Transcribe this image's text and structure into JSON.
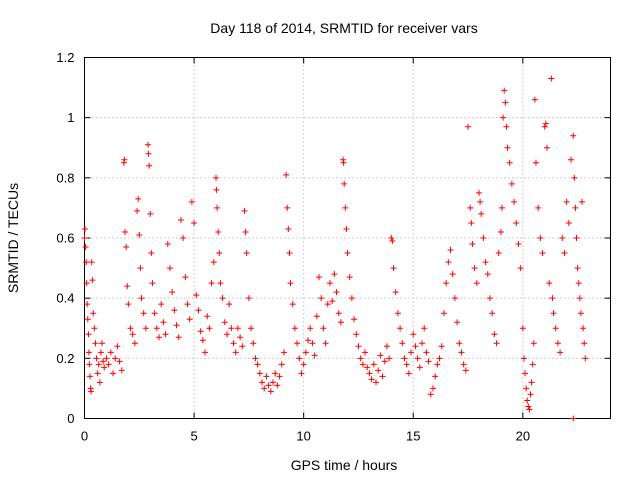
{
  "chart_data": {
    "type": "scatter",
    "title": "Day 118 of 2014, SRMTID for receiver vars",
    "xlabel": "GPS time / hours",
    "ylabel": "SRMTID / TECUs",
    "xlim": [
      0,
      24
    ],
    "ylim": [
      0,
      1.2
    ],
    "xticks": [
      0,
      5,
      10,
      15,
      20
    ],
    "xtick_labels": [
      "0",
      "5",
      "10",
      "15",
      "20"
    ],
    "yticks": [
      0,
      0.2,
      0.4,
      0.6,
      0.8,
      1.0,
      1.2
    ],
    "ytick_labels": [
      "0",
      "0.2",
      "0.4",
      "0.6",
      "0.8",
      "1",
      "1.2"
    ],
    "grid": true,
    "marker": "+",
    "series": [
      {
        "name": "SRMTID",
        "color": "#ff0000",
        "points": [
          [
            0.0,
            0.6
          ],
          [
            0.02,
            0.63
          ],
          [
            0.05,
            0.57
          ],
          [
            0.08,
            0.52
          ],
          [
            0.1,
            0.45
          ],
          [
            0.12,
            0.38
          ],
          [
            0.15,
            0.33
          ],
          [
            0.18,
            0.28
          ],
          [
            0.2,
            0.22
          ],
          [
            0.22,
            0.18
          ],
          [
            0.25,
            0.14
          ],
          [
            0.28,
            0.1
          ],
          [
            0.3,
            0.09
          ],
          [
            0.33,
            0.52
          ],
          [
            0.36,
            0.46
          ],
          [
            0.4,
            0.35
          ],
          [
            0.45,
            0.3
          ],
          [
            0.5,
            0.25
          ],
          [
            0.55,
            0.2
          ],
          [
            0.6,
            0.15
          ],
          [
            0.65,
            0.18
          ],
          [
            0.7,
            0.12
          ],
          [
            0.75,
            0.22
          ],
          [
            0.8,
            0.25
          ],
          [
            0.85,
            0.19
          ],
          [
            0.9,
            0.17
          ],
          [
            1.0,
            0.2
          ],
          [
            1.1,
            0.18
          ],
          [
            1.2,
            0.22
          ],
          [
            1.3,
            0.15
          ],
          [
            1.4,
            0.2
          ],
          [
            1.5,
            0.24
          ],
          [
            1.6,
            0.19
          ],
          [
            1.7,
            0.16
          ],
          [
            1.8,
            0.85
          ],
          [
            1.82,
            0.86
          ],
          [
            1.85,
            0.62
          ],
          [
            1.9,
            0.57
          ],
          [
            1.95,
            0.44
          ],
          [
            2.0,
            0.38
          ],
          [
            2.1,
            0.3
          ],
          [
            2.2,
            0.28
          ],
          [
            2.3,
            0.25
          ],
          [
            2.4,
            0.69
          ],
          [
            2.45,
            0.73
          ],
          [
            2.5,
            0.61
          ],
          [
            2.55,
            0.5
          ],
          [
            2.6,
            0.4
          ],
          [
            2.7,
            0.35
          ],
          [
            2.8,
            0.3
          ],
          [
            2.9,
            0.91
          ],
          [
            2.92,
            0.88
          ],
          [
            2.95,
            0.84
          ],
          [
            3.0,
            0.68
          ],
          [
            3.05,
            0.55
          ],
          [
            3.1,
            0.45
          ],
          [
            3.2,
            0.35
          ],
          [
            3.3,
            0.3
          ],
          [
            3.4,
            0.27
          ],
          [
            3.5,
            0.38
          ],
          [
            3.6,
            0.32
          ],
          [
            3.7,
            0.28
          ],
          [
            3.8,
            0.58
          ],
          [
            3.9,
            0.5
          ],
          [
            4.0,
            0.42
          ],
          [
            4.1,
            0.36
          ],
          [
            4.2,
            0.31
          ],
          [
            4.3,
            0.27
          ],
          [
            4.4,
            0.66
          ],
          [
            4.5,
            0.6
          ],
          [
            4.6,
            0.47
          ],
          [
            4.7,
            0.38
          ],
          [
            4.8,
            0.33
          ],
          [
            4.9,
            0.72
          ],
          [
            5.0,
            0.65
          ],
          [
            5.1,
            0.41
          ],
          [
            5.2,
            0.36
          ],
          [
            5.3,
            0.29
          ],
          [
            5.4,
            0.26
          ],
          [
            5.5,
            0.22
          ],
          [
            5.6,
            0.34
          ],
          [
            5.7,
            0.3
          ],
          [
            5.8,
            0.45
          ],
          [
            5.9,
            0.52
          ],
          [
            6.0,
            0.8
          ],
          [
            6.02,
            0.76
          ],
          [
            6.05,
            0.7
          ],
          [
            6.1,
            0.62
          ],
          [
            6.15,
            0.55
          ],
          [
            6.2,
            0.45
          ],
          [
            6.3,
            0.4
          ],
          [
            6.4,
            0.32
          ],
          [
            6.5,
            0.28
          ],
          [
            6.6,
            0.38
          ],
          [
            6.7,
            0.3
          ],
          [
            6.8,
            0.25
          ],
          [
            6.9,
            0.22
          ],
          [
            7.0,
            0.3
          ],
          [
            7.1,
            0.27
          ],
          [
            7.2,
            0.24
          ],
          [
            7.3,
            0.69
          ],
          [
            7.35,
            0.62
          ],
          [
            7.4,
            0.55
          ],
          [
            7.5,
            0.4
          ],
          [
            7.6,
            0.3
          ],
          [
            7.7,
            0.25
          ],
          [
            7.8,
            0.2
          ],
          [
            7.9,
            0.18
          ],
          [
            8.0,
            0.15
          ],
          [
            8.1,
            0.12
          ],
          [
            8.2,
            0.1
          ],
          [
            8.3,
            0.14
          ],
          [
            8.4,
            0.11
          ],
          [
            8.5,
            0.09
          ],
          [
            8.6,
            0.12
          ],
          [
            8.7,
            0.15
          ],
          [
            8.8,
            0.11
          ],
          [
            8.9,
            0.14
          ],
          [
            9.0,
            0.18
          ],
          [
            9.1,
            0.22
          ],
          [
            9.2,
            0.81
          ],
          [
            9.25,
            0.7
          ],
          [
            9.3,
            0.63
          ],
          [
            9.35,
            0.55
          ],
          [
            9.4,
            0.45
          ],
          [
            9.5,
            0.38
          ],
          [
            9.6,
            0.3
          ],
          [
            9.7,
            0.25
          ],
          [
            9.8,
            0.2
          ],
          [
            9.9,
            0.15
          ],
          [
            10.0,
            0.18
          ],
          [
            10.1,
            0.22
          ],
          [
            10.2,
            0.26
          ],
          [
            10.3,
            0.3
          ],
          [
            10.4,
            0.25
          ],
          [
            10.5,
            0.21
          ],
          [
            10.6,
            0.34
          ],
          [
            10.7,
            0.47
          ],
          [
            10.8,
            0.4
          ],
          [
            10.9,
            0.3
          ],
          [
            11.0,
            0.25
          ],
          [
            11.1,
            0.38
          ],
          [
            11.2,
            0.45
          ],
          [
            11.3,
            0.39
          ],
          [
            11.4,
            0.48
          ],
          [
            11.5,
            0.42
          ],
          [
            11.6,
            0.35
          ],
          [
            11.7,
            0.32
          ],
          [
            11.8,
            0.86
          ],
          [
            11.82,
            0.85
          ],
          [
            11.85,
            0.78
          ],
          [
            11.9,
            0.7
          ],
          [
            11.95,
            0.63
          ],
          [
            12.0,
            0.55
          ],
          [
            12.1,
            0.47
          ],
          [
            12.2,
            0.4
          ],
          [
            12.3,
            0.33
          ],
          [
            12.4,
            0.28
          ],
          [
            12.5,
            0.24
          ],
          [
            12.6,
            0.2
          ],
          [
            12.7,
            0.18
          ],
          [
            12.8,
            0.22
          ],
          [
            12.9,
            0.17
          ],
          [
            13.0,
            0.15
          ],
          [
            13.1,
            0.13
          ],
          [
            13.2,
            0.18
          ],
          [
            13.3,
            0.12
          ],
          [
            13.4,
            0.16
          ],
          [
            13.5,
            0.21
          ],
          [
            13.6,
            0.14
          ],
          [
            13.7,
            0.19
          ],
          [
            13.8,
            0.24
          ],
          [
            13.9,
            0.2
          ],
          [
            14.0,
            0.6
          ],
          [
            14.05,
            0.59
          ],
          [
            14.1,
            0.5
          ],
          [
            14.2,
            0.42
          ],
          [
            14.3,
            0.35
          ],
          [
            14.4,
            0.3
          ],
          [
            14.5,
            0.25
          ],
          [
            14.6,
            0.2
          ],
          [
            14.7,
            0.18
          ],
          [
            14.8,
            0.15
          ],
          [
            14.9,
            0.22
          ],
          [
            15.0,
            0.28
          ],
          [
            15.1,
            0.24
          ],
          [
            15.2,
            0.2
          ],
          [
            15.3,
            0.17
          ],
          [
            15.4,
            0.25
          ],
          [
            15.5,
            0.3
          ],
          [
            15.6,
            0.22
          ],
          [
            15.7,
            0.19
          ],
          [
            15.8,
            0.08
          ],
          [
            15.9,
            0.1
          ],
          [
            16.0,
            0.14
          ],
          [
            16.1,
            0.18
          ],
          [
            16.2,
            0.2
          ],
          [
            16.3,
            0.24
          ],
          [
            16.4,
            0.35
          ],
          [
            16.5,
            0.45
          ],
          [
            16.6,
            0.52
          ],
          [
            16.7,
            0.56
          ],
          [
            16.8,
            0.48
          ],
          [
            16.9,
            0.4
          ],
          [
            17.0,
            0.32
          ],
          [
            17.1,
            0.25
          ],
          [
            17.2,
            0.22
          ],
          [
            17.3,
            0.18
          ],
          [
            17.4,
            0.16
          ],
          [
            17.5,
            0.97
          ],
          [
            17.6,
            0.7
          ],
          [
            17.65,
            0.65
          ],
          [
            17.7,
            0.58
          ],
          [
            17.8,
            0.5
          ],
          [
            17.9,
            0.45
          ],
          [
            18.0,
            0.75
          ],
          [
            18.05,
            0.72
          ],
          [
            18.1,
            0.68
          ],
          [
            18.2,
            0.6
          ],
          [
            18.3,
            0.52
          ],
          [
            18.4,
            0.48
          ],
          [
            18.5,
            0.4
          ],
          [
            18.6,
            0.35
          ],
          [
            18.7,
            0.28
          ],
          [
            18.8,
            0.25
          ],
          [
            18.9,
            0.55
          ],
          [
            19.0,
            0.62
          ],
          [
            19.05,
            0.7
          ],
          [
            19.1,
            1.0
          ],
          [
            19.15,
            1.09
          ],
          [
            19.2,
            1.05
          ],
          [
            19.25,
            0.97
          ],
          [
            19.3,
            0.9
          ],
          [
            19.4,
            0.85
          ],
          [
            19.5,
            0.78
          ],
          [
            19.6,
            0.72
          ],
          [
            19.7,
            0.65
          ],
          [
            19.8,
            0.58
          ],
          [
            19.9,
            0.5
          ],
          [
            20.0,
            0.3
          ],
          [
            20.05,
            0.2
          ],
          [
            20.1,
            0.15
          ],
          [
            20.15,
            0.1
          ],
          [
            20.2,
            0.06
          ],
          [
            20.25,
            0.04
          ],
          [
            20.3,
            0.03
          ],
          [
            20.35,
            0.08
          ],
          [
            20.4,
            0.12
          ],
          [
            20.45,
            0.18
          ],
          [
            20.5,
            0.25
          ],
          [
            20.55,
            1.06
          ],
          [
            20.6,
            0.85
          ],
          [
            20.7,
            0.7
          ],
          [
            20.8,
            0.6
          ],
          [
            20.9,
            0.55
          ],
          [
            21.0,
            0.97
          ],
          [
            21.05,
            0.98
          ],
          [
            21.1,
            0.9
          ],
          [
            21.2,
            0.45
          ],
          [
            21.3,
            1.13
          ],
          [
            21.35,
            0.4
          ],
          [
            21.4,
            0.35
          ],
          [
            21.5,
            0.3
          ],
          [
            21.6,
            0.25
          ],
          [
            21.7,
            0.22
          ],
          [
            21.8,
            0.6
          ],
          [
            21.9,
            0.55
          ],
          [
            22.0,
            0.72
          ],
          [
            22.1,
            0.65
          ],
          [
            22.2,
            0.86
          ],
          [
            22.3,
            0.94
          ],
          [
            22.35,
            0.8
          ],
          [
            22.4,
            0.7
          ],
          [
            22.45,
            0.6
          ],
          [
            22.5,
            0.5
          ],
          [
            22.55,
            0.45
          ],
          [
            22.6,
            0.4
          ],
          [
            22.65,
            0.35
          ],
          [
            22.7,
            0.72
          ],
          [
            22.75,
            0.3
          ],
          [
            22.8,
            0.25
          ],
          [
            22.85,
            0.2
          ],
          [
            22.3,
            0.0
          ]
        ]
      }
    ]
  }
}
